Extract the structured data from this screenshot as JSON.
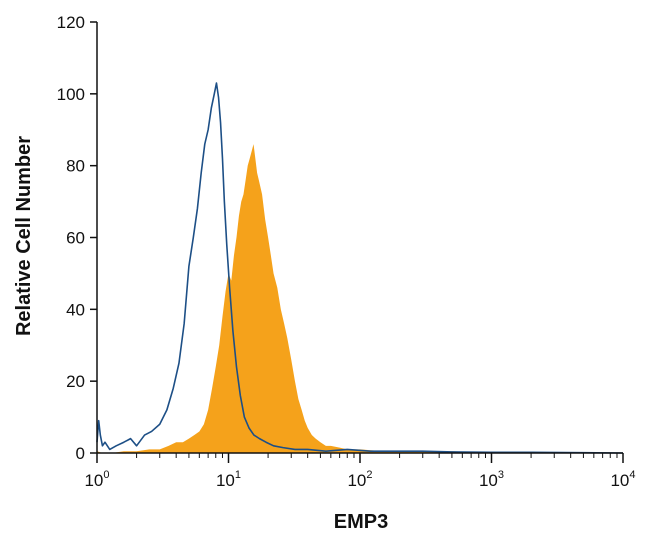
{
  "chart_data": {
    "type": "area",
    "title": "",
    "xlabel": "EMP3",
    "ylabel": "Relative Cell Number",
    "x_scale": "log",
    "xlim": [
      1,
      10000
    ],
    "ylim": [
      0,
      120
    ],
    "grid": false,
    "legend": "none",
    "x_ticks": [
      {
        "value": 1,
        "base": "10",
        "exp": "0"
      },
      {
        "value": 10,
        "base": "10",
        "exp": "1"
      },
      {
        "value": 100,
        "base": "10",
        "exp": "2"
      },
      {
        "value": 1000,
        "base": "10",
        "exp": "3"
      },
      {
        "value": 10000,
        "base": "10",
        "exp": "4"
      }
    ],
    "y_ticks": [
      "0",
      "20",
      "40",
      "60",
      "80",
      "100",
      "120"
    ],
    "series": [
      {
        "style": "line",
        "color": "#1d4f86",
        "x": [
          1.0,
          1.03,
          1.06,
          1.1,
          1.15,
          1.25,
          1.4,
          1.6,
          1.8,
          2.0,
          2.3,
          2.6,
          3.0,
          3.4,
          3.8,
          4.2,
          4.6,
          5.0,
          5.4,
          5.8,
          6.2,
          6.6,
          7.0,
          7.4,
          7.8,
          8.1,
          8.4,
          8.7,
          9.0,
          9.3,
          9.7,
          10.2,
          10.8,
          11.5,
          12.3,
          13.2,
          14.3,
          15.6,
          17.2,
          19.3,
          22,
          26,
          32,
          40,
          55,
          80,
          120,
          200,
          300,
          500,
          1000,
          2000,
          5000,
          10000
        ],
        "y": [
          3,
          9,
          5,
          2,
          3,
          1,
          2,
          3,
          4,
          2,
          5,
          6,
          8,
          12,
          18,
          25,
          36,
          52,
          60,
          68,
          78,
          86,
          90,
          96,
          100,
          103,
          99,
          92,
          82,
          70,
          58,
          46,
          34,
          24,
          16,
          10,
          7,
          5,
          4,
          3,
          2,
          1.5,
          1,
          1,
          0.5,
          1,
          0.5,
          0.5,
          0.5,
          0.3,
          0.2,
          0.2,
          0.1,
          0
        ]
      },
      {
        "style": "filled",
        "color": "#f5a21b",
        "x": [
          1.0,
          1.1,
          1.3,
          1.6,
          2.0,
          2.5,
          3.0,
          3.5,
          4.0,
          4.5,
          5.0,
          5.5,
          6.0,
          6.5,
          7.0,
          7.5,
          8.0,
          8.5,
          9.0,
          9.5,
          10.0,
          10.5,
          11.0,
          11.5,
          12.0,
          12.5,
          13.0,
          13.5,
          14.0,
          14.5,
          15.0,
          15.5,
          16.0,
          16.5,
          17.0,
          17.5,
          18.0,
          19.0,
          20.0,
          21.0,
          22.0,
          23.5,
          25.0,
          26.5,
          28.0,
          30.0,
          32.0,
          34.0,
          36.0,
          38.0,
          40.0,
          43.0,
          46.0,
          50.0,
          55.0,
          60.0,
          70.0,
          80.0,
          100.0,
          150.0,
          300.0,
          500.0,
          1000.0,
          10000.0
        ],
        "y": [
          0.5,
          0,
          0,
          0.5,
          0.5,
          1,
          1,
          2,
          3,
          3,
          4,
          5,
          6,
          8,
          12,
          18,
          24,
          30,
          38,
          45,
          50,
          48,
          55,
          60,
          66,
          70,
          72,
          76,
          80,
          82,
          84,
          86,
          82,
          78,
          76,
          74,
          72,
          65,
          60,
          55,
          50,
          46,
          40,
          36,
          32,
          26,
          20,
          15,
          12,
          9,
          7,
          5,
          4,
          3,
          2,
          2,
          1.5,
          1,
          1,
          0.5,
          0.5,
          0.5,
          0,
          0
        ]
      }
    ]
  }
}
